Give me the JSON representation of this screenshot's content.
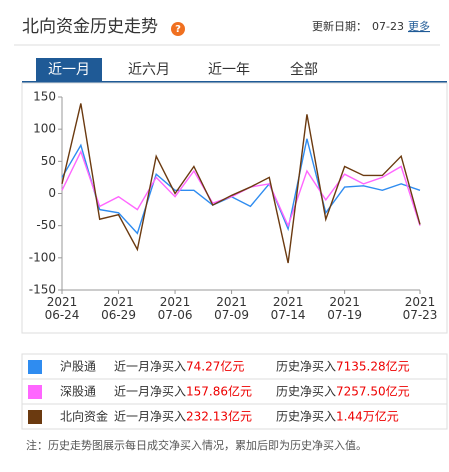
{
  "header": {
    "title": "北向资金历史走势",
    "help": "?",
    "update_label": "更新日期：",
    "update_date": "07-23",
    "more": "更多"
  },
  "tabs": [
    "近一月",
    "近六月",
    "近一年",
    "全部"
  ],
  "chart_data": {
    "type": "line",
    "categories": [
      "2021\n06-24",
      null,
      null,
      "2021\n06-29",
      null,
      null,
      "2021\n07-06",
      null,
      null,
      "2021\n07-09",
      null,
      null,
      "2021\n07-14",
      null,
      null,
      "2021\n07-19",
      null,
      null,
      null,
      "2021\n07-23"
    ],
    "series": [
      {
        "name": "沪股通",
        "color": "#2f8cf0",
        "values": [
          25,
          75,
          -25,
          -30,
          -62,
          30,
          5,
          5,
          -18,
          -5,
          -20,
          15,
          -55,
          85,
          -30,
          10,
          12,
          5,
          15,
          5
        ]
      },
      {
        "name": "深股通",
        "color": "#ff66ff",
        "values": [
          5,
          65,
          -20,
          -5,
          -25,
          25,
          -5,
          35,
          -15,
          -5,
          10,
          15,
          -50,
          35,
          -10,
          30,
          15,
          25,
          42,
          -50
        ]
      },
      {
        "name": "北向资金",
        "color": "#6b3a10",
        "values": [
          15,
          140,
          -40,
          -33,
          -87,
          58,
          0,
          42,
          -18,
          -3,
          10,
          25,
          -108,
          123,
          -40,
          42,
          28,
          28,
          58,
          -48
        ]
      }
    ],
    "ylim": [
      -150,
      150
    ],
    "yticks": [
      150,
      100,
      50,
      0,
      -50,
      -100,
      -150
    ],
    "grid": false
  },
  "summary": {
    "rows": [
      {
        "name": "沪股通",
        "month_label": "近一月净买入",
        "month_value": "74.27亿元",
        "total_label": "历史净买入",
        "total_value": "7135.28亿元"
      },
      {
        "name": "深股通",
        "month_label": "近一月净买入",
        "month_value": "157.86亿元",
        "total_label": "历史净买入",
        "total_value": "7257.50亿元"
      },
      {
        "name": "北向资金",
        "month_label": "近一月净买入",
        "month_value": "232.13亿元",
        "total_label": "历史净买入",
        "total_value": "1.44万亿元"
      }
    ]
  },
  "note": "注：历史走势图展示每日成交净买入情况，累加后即为历史净买入值。"
}
